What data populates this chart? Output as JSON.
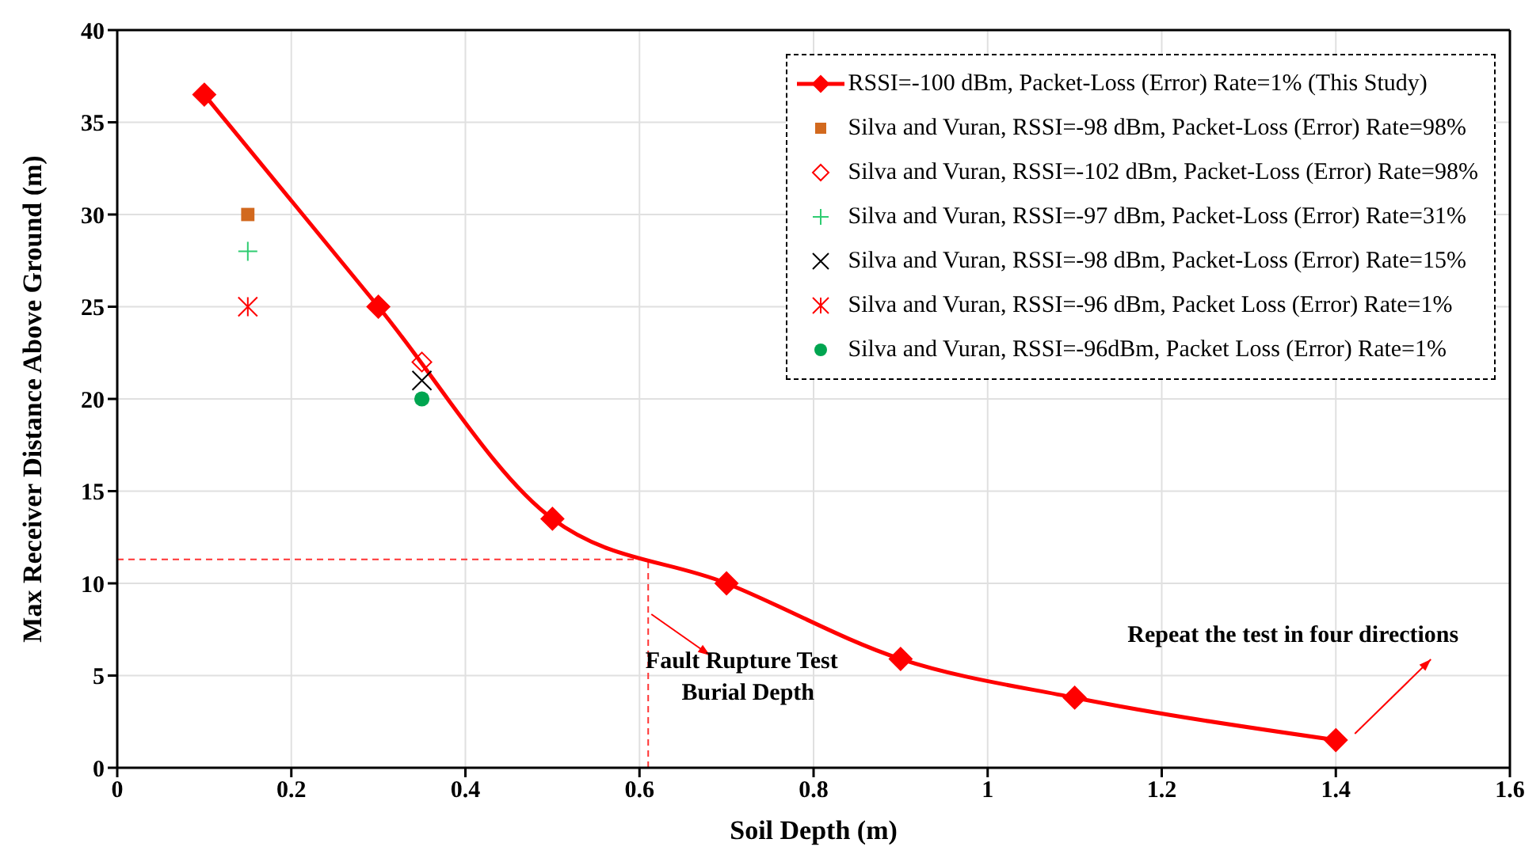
{
  "chart_data": {
    "type": "line",
    "xlabel": "Soil Depth (m)",
    "ylabel": "Max Receiver Distance Above Ground (m)",
    "xlim": [
      0,
      1.6
    ],
    "xticks": [
      0,
      0.2,
      0.4,
      0.6,
      0.8,
      1,
      1.2,
      1.4,
      1.6
    ],
    "ylim": [
      0,
      40
    ],
    "yticks": [
      0,
      5,
      10,
      15,
      20,
      25,
      30,
      35,
      40
    ],
    "grid": true,
    "legend": "top right",
    "line_style": "solid",
    "series": [
      {
        "name": "RSSI=-100 dBm, Packet-Loss (Error) Rate=1% (This Study)",
        "color": "#ff0000",
        "marker": "diamond",
        "x": [
          0.1,
          0.3,
          0.5,
          0.7,
          0.9,
          1.1,
          1.4
        ],
        "values": [
          36.5,
          25,
          13.5,
          10,
          5.9,
          3.8,
          1.5
        ]
      },
      {
        "type": "scatter",
        "name": "Silva and Vuran, RSSI=-98 dBm, Packet-Loss (Error) Rate=98%",
        "color": "#d2691e",
        "marker": "square",
        "x": [
          0.15
        ],
        "values": [
          30
        ]
      },
      {
        "type": "scatter",
        "name": "Silva and Vuran, RSSI=-102 dBm, Packet-Loss (Error) Rate=98%",
        "color": "#ff0000",
        "marker": "diamond-open",
        "x": [
          0.35
        ],
        "values": [
          22
        ]
      },
      {
        "type": "scatter",
        "name": "Silva and Vuran, RSSI=-97 dBm, Packet-Loss (Error) Rate=31%",
        "color": "#2ecc71",
        "marker": "cross",
        "x": [
          0.15
        ],
        "values": [
          28
        ]
      },
      {
        "type": "scatter",
        "name": "Silva and Vuran, RSSI=-98 dBm, Packet-Loss (Error) Rate=15%",
        "color": "#000000",
        "marker": "x",
        "x": [
          0.35
        ],
        "values": [
          21
        ]
      },
      {
        "type": "scatter",
        "name": "Silva and Vuran, RSSI=-96 dBm, Packet Loss (Error) Rate=1%",
        "color": "#ff0000",
        "x": [
          0.15
        ],
        "values": [
          25
        ]
      },
      {
        "type": "scatter",
        "name": "Silva and Vuran, RSSI=-96dBm, Packet Loss (Error) Rate=1%",
        "color": "#00a550",
        "marker": "circle",
        "x": [
          0.35
        ],
        "values": [
          20
        ]
      }
    ],
    "ref_lines": [
      {
        "axis": "x",
        "value": 0.61,
        "color": "#ff3333",
        "line_style": "dashed"
      },
      {
        "axis": "y",
        "value": 11.3,
        "color": "#ff3333",
        "line_style": "dashed"
      }
    ],
    "annotations": [
      {
        "text": "Fault Rupture Test\nBurial Depth",
        "x": 0.61,
        "y": 8.5
      },
      "Repeat the test in four directions"
    ]
  }
}
